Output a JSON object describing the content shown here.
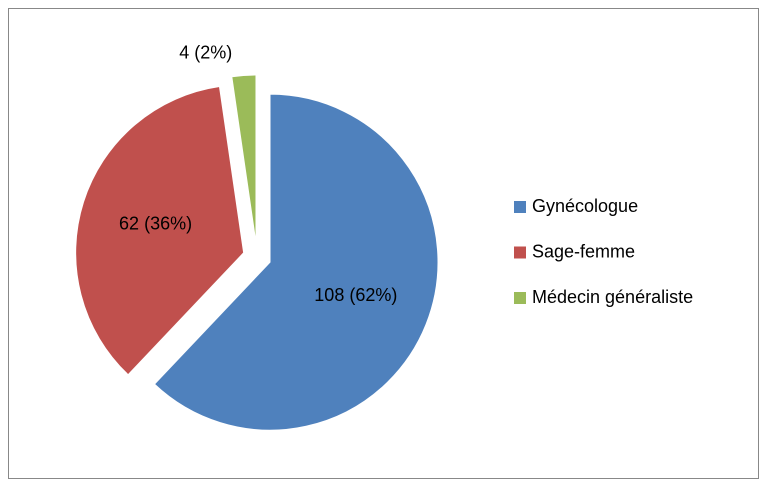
{
  "chart_data": {
    "type": "pie",
    "categories": [
      "Gynécologue",
      "Sage-femme",
      "Médecin généraliste"
    ],
    "values": [
      108,
      62,
      4
    ],
    "value_labels": [
      "108 (62%)",
      "62 (36%)",
      "4 (2%)"
    ],
    "colors": [
      "#4f81bd",
      "#c0504d",
      "#9bbb59"
    ],
    "legend": "right"
  }
}
